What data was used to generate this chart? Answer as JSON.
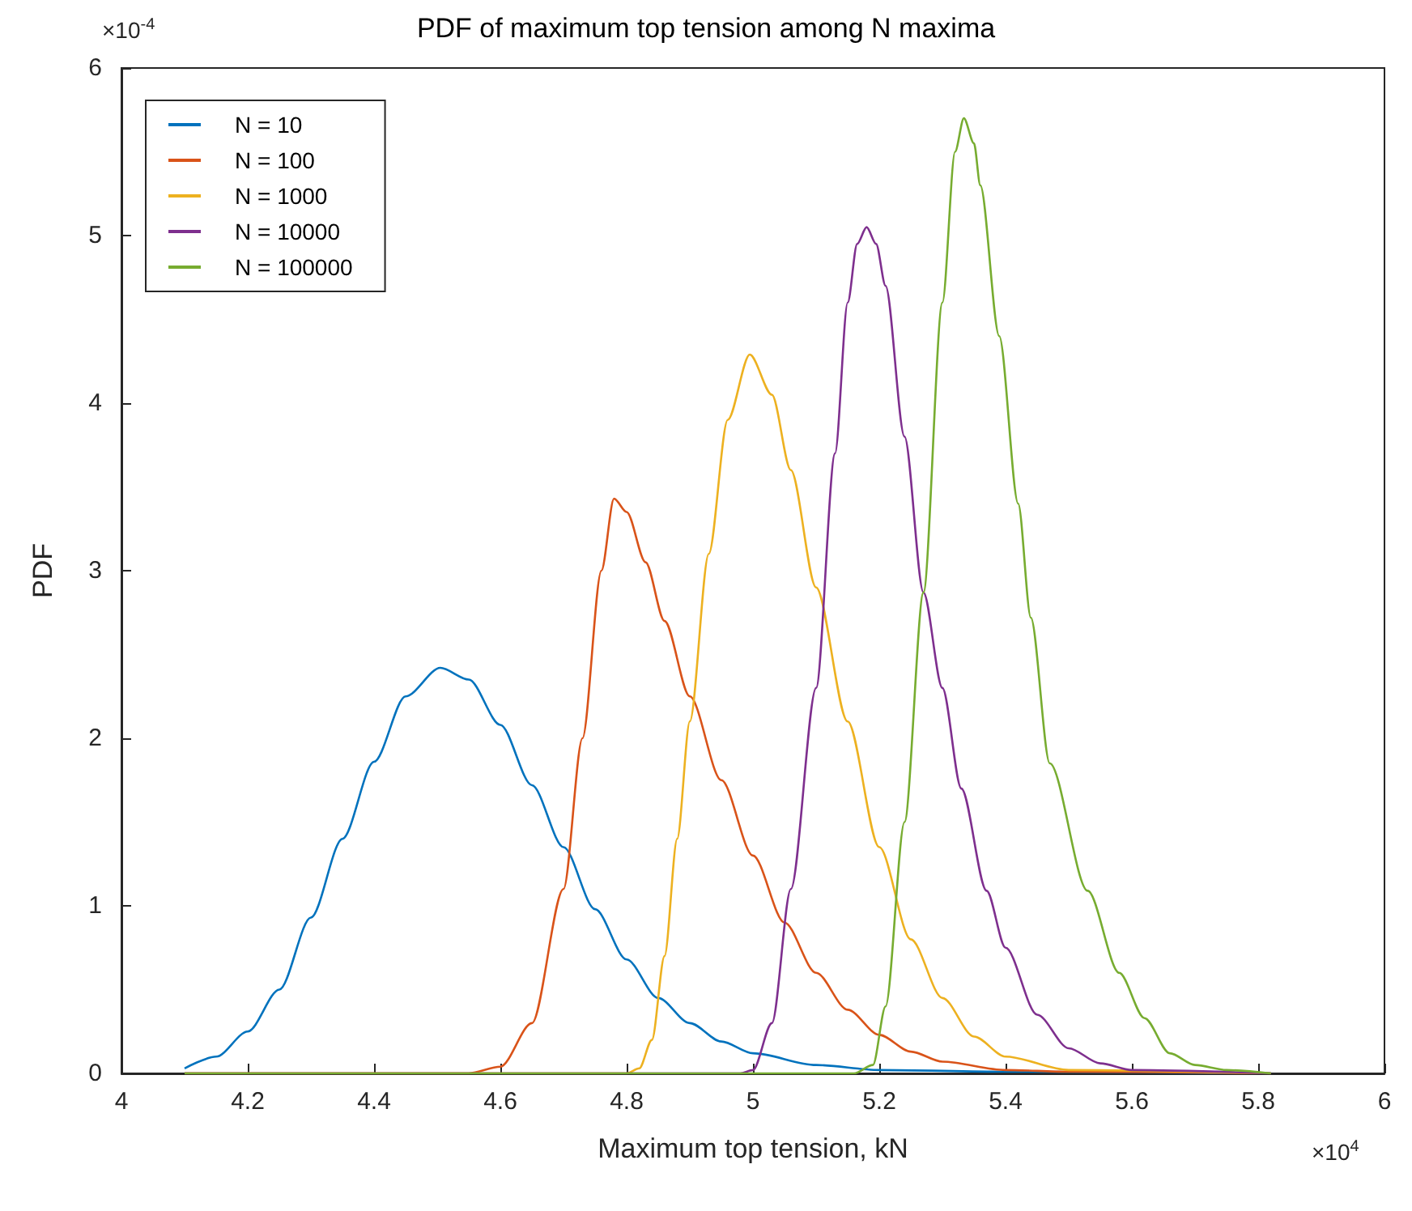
{
  "chart_data": {
    "type": "line",
    "title": "PDF of maximum top tension among N maxima",
    "xlabel": "Maximum top tension, kN",
    "ylabel": "PDF",
    "annotations": [
      "×10$^{-4}$",
      "×10$^{4}$"
    ],
    "xlim": [
      4,
      6
    ],
    "xticks": [
      4,
      4.2,
      4.4,
      4.6,
      4.8,
      5,
      5.2,
      5.4,
      5.6,
      5.8,
      6
    ],
    "ylim": [
      0,
      6
    ],
    "yticks": [
      0,
      1,
      2,
      3,
      4,
      5,
      6
    ],
    "grid": false,
    "legend": "top left",
    "series": [
      {
        "name": "N = 10",
        "color": "#0072bd",
        "x": [
          4.1,
          4.15,
          4.2,
          4.25,
          4.3,
          4.35,
          4.4,
          4.45,
          4.505,
          4.55,
          4.6,
          4.65,
          4.7,
          4.75,
          4.8,
          4.85,
          4.9,
          4.95,
          5,
          5.1,
          5.2,
          5.4,
          5.82
        ],
        "values": [
          0.03,
          0.1,
          0.25,
          0.5,
          0.93,
          1.4,
          1.86,
          2.25,
          2.42,
          2.35,
          2.08,
          1.72,
          1.35,
          0.98,
          0.68,
          0.45,
          0.3,
          0.19,
          0.12,
          0.05,
          0.02,
          0.01,
          0
        ]
      },
      {
        "name": "N = 100",
        "color": "#d95319",
        "x": [
          4.1,
          4.55,
          4.6,
          4.65,
          4.7,
          4.73,
          4.76,
          4.78,
          4.8,
          4.83,
          4.86,
          4.9,
          4.95,
          5,
          5.05,
          5.1,
          5.15,
          5.2,
          5.25,
          5.3,
          5.4,
          5.5,
          5.82
        ],
        "values": [
          0,
          0,
          0.04,
          0.3,
          1.1,
          2,
          3,
          3.43,
          3.35,
          3.05,
          2.7,
          2.25,
          1.75,
          1.3,
          0.9,
          0.6,
          0.38,
          0.23,
          0.13,
          0.07,
          0.02,
          0.01,
          0
        ]
      },
      {
        "name": "N = 1000",
        "color": "#edb120",
        "x": [
          4.1,
          4.8,
          4.82,
          4.84,
          4.86,
          4.88,
          4.9,
          4.93,
          4.96,
          4.995,
          5.03,
          5.06,
          5.1,
          5.15,
          5.2,
          5.25,
          5.3,
          5.35,
          5.4,
          5.5,
          5.82
        ],
        "values": [
          0,
          0,
          0.03,
          0.2,
          0.7,
          1.4,
          2.1,
          3.1,
          3.9,
          4.29,
          4.05,
          3.6,
          2.9,
          2.1,
          1.35,
          0.8,
          0.45,
          0.22,
          0.1,
          0.02,
          0
        ]
      },
      {
        "name": "N = 10000",
        "color": "#7e2f8e",
        "x": [
          4.1,
          4.98,
          5,
          5.03,
          5.06,
          5.1,
          5.13,
          5.15,
          5.165,
          5.18,
          5.195,
          5.21,
          5.24,
          5.27,
          5.3,
          5.33,
          5.37,
          5.4,
          5.45,
          5.5,
          5.55,
          5.6,
          5.82
        ],
        "values": [
          0,
          0,
          0.02,
          0.3,
          1.1,
          2.3,
          3.7,
          4.6,
          4.95,
          5.05,
          4.95,
          4.7,
          3.8,
          2.87,
          2.3,
          1.7,
          1.09,
          0.75,
          0.35,
          0.15,
          0.06,
          0.02,
          0
        ]
      },
      {
        "name": "N = 100000",
        "color": "#77ac30",
        "x": [
          4.1,
          5.16,
          5.19,
          5.21,
          5.24,
          5.27,
          5.3,
          5.32,
          5.334,
          5.35,
          5.36,
          5.39,
          5.42,
          5.44,
          5.47,
          5.53,
          5.58,
          5.62,
          5.66,
          5.7,
          5.75,
          5.82
        ],
        "values": [
          0,
          0,
          0.05,
          0.4,
          1.5,
          2.87,
          4.6,
          5.5,
          5.7,
          5.55,
          5.3,
          4.4,
          3.4,
          2.72,
          1.85,
          1.09,
          0.6,
          0.33,
          0.12,
          0.05,
          0.02,
          0
        ]
      }
    ]
  }
}
